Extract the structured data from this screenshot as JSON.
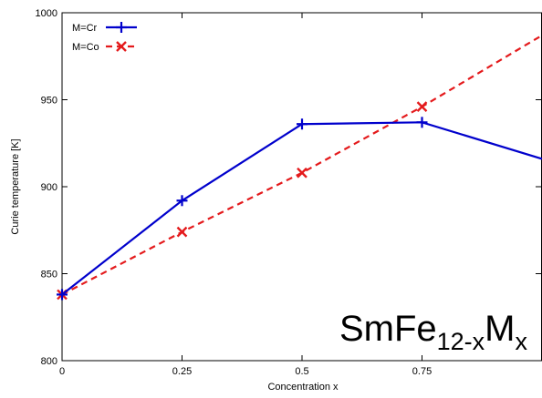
{
  "chart_data": {
    "type": "line",
    "xlabel": "Concentration x",
    "ylabel": "Curie temperature [K]",
    "xlim": [
      0,
      1.0
    ],
    "ylim": [
      800,
      1000
    ],
    "x_ticks": [
      0,
      0.25,
      0.5,
      0.75
    ],
    "x_tick_labels": [
      "0",
      "0.25",
      "0.5",
      "0.75"
    ],
    "y_ticks": [
      800,
      850,
      900,
      950,
      1000
    ],
    "y_tick_labels": [
      "800",
      "850",
      "900",
      "950",
      "1000"
    ],
    "grid": false,
    "legend_position": "top-left",
    "series": [
      {
        "name": "M=Cr",
        "color": "#0000cc",
        "line_style": "solid",
        "marker": "plus",
        "x": [
          0,
          0.25,
          0.5,
          0.75,
          1.0
        ],
        "y": [
          838,
          892,
          936,
          937,
          916
        ]
      },
      {
        "name": "M=Co",
        "color": "#e41a1c",
        "line_style": "dashed",
        "marker": "cross",
        "x": [
          0,
          0.25,
          0.5,
          0.75,
          1.0
        ],
        "y": [
          838,
          874,
          908,
          946,
          987
        ]
      }
    ],
    "annotation": {
      "base": "SmFe",
      "subscript": "12-x",
      "element": "M",
      "element_subscript": "x"
    }
  }
}
